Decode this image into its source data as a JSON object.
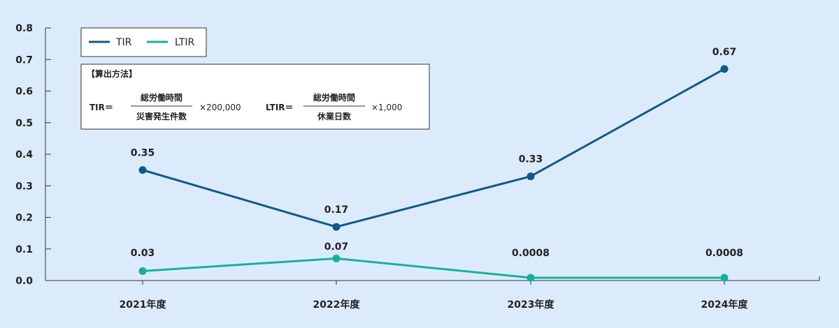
{
  "chart_data": {
    "type": "line",
    "categories": [
      "2021年度",
      "2022年度",
      "2023年度",
      "2024年度"
    ],
    "ylim": [
      0,
      0.8
    ],
    "yticks": [
      "0.0",
      "0.1",
      "0.2",
      "0.3",
      "0.4",
      "0.5",
      "0.6",
      "0.7",
      "0.8"
    ],
    "series": [
      {
        "name": "TIR",
        "color": "#0e5a8a",
        "values": [
          0.35,
          0.17,
          0.33,
          0.67
        ],
        "labels": [
          "0.35",
          "0.17",
          "0.33",
          "0.67"
        ]
      },
      {
        "name": "LTIR",
        "color": "#16b0a0",
        "values": [
          0.03,
          0.07,
          0.0008,
          0.0008
        ],
        "labels": [
          "0.03",
          "0.07",
          "0.0008",
          "0.0008"
        ]
      }
    ],
    "legend": "top-left"
  },
  "formula": {
    "title": "【算出方法】",
    "tir_label": "TIR＝",
    "tir_numerator": "総労働時間",
    "tir_denominator": "災害発生件数",
    "tir_multiplier": "×200,000",
    "ltir_label": "LTIR＝",
    "ltir_numerator": "総労働時間",
    "ltir_denominator": "休業日数",
    "ltir_multiplier": "×1,000"
  }
}
